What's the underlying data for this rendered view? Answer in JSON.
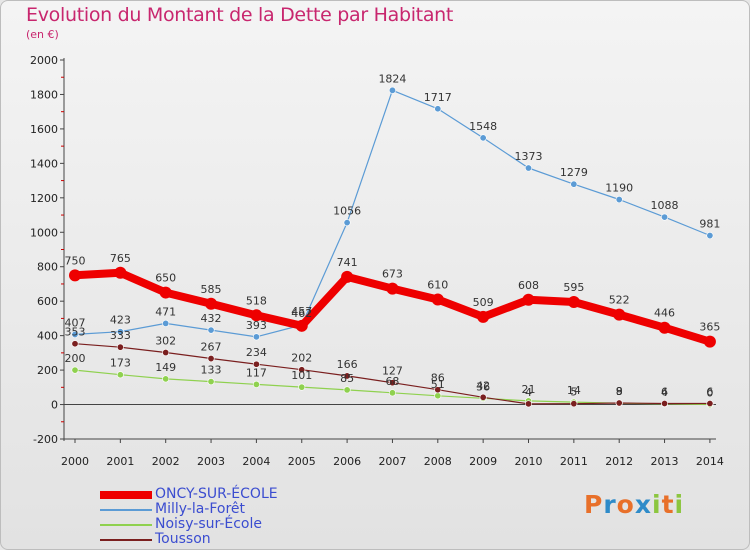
{
  "chart_data": {
    "type": "line",
    "title": "Evolution du Montant de la Dette par Habitant",
    "subtitle": "(en €)",
    "x": [
      "2000",
      "2001",
      "2002",
      "2003",
      "2004",
      "2005",
      "2006",
      "2007",
      "2008",
      "2009",
      "2010",
      "2011",
      "2012",
      "2013",
      "2014"
    ],
    "ylim": [
      -200,
      2000
    ],
    "yticks": [
      -200,
      0,
      200,
      400,
      600,
      800,
      1000,
      1200,
      1400,
      1600,
      1800,
      2000
    ],
    "grid": false,
    "legend_position": "bottom-left",
    "series": [
      {
        "name": "ONCY-SUR-ÉCOLE",
        "color": "#ee0000",
        "width": 8,
        "values": [
          750,
          765,
          650,
          585,
          518,
          457,
          741,
          673,
          610,
          509,
          608,
          595,
          522,
          446,
          365
        ]
      },
      {
        "name": "Milly-la-Forêt",
        "color": "#5b9bd5",
        "width": 1.2,
        "values": [
          407,
          423,
          471,
          432,
          393,
          462,
          1056,
          1824,
          1717,
          1548,
          1373,
          1279,
          1190,
          1088,
          981
        ]
      },
      {
        "name": "Noisy-sur-École",
        "color": "#8fd14f",
        "width": 1.2,
        "values": [
          200,
          173,
          149,
          133,
          117,
          101,
          85,
          68,
          51,
          36,
          21,
          14,
          8,
          4,
          0
        ]
      },
      {
        "name": "Tousson",
        "color": "#7a1f1f",
        "width": 1.2,
        "values": [
          353,
          333,
          302,
          267,
          234,
          202,
          166,
          127,
          86,
          42,
          4,
          5,
          9,
          6,
          6
        ]
      }
    ]
  },
  "logo": {
    "letters": [
      "P",
      "r",
      "o",
      "x",
      "i",
      "t",
      "i"
    ],
    "colors": [
      "#e8702a",
      "#2e8bc9",
      "#e8702a",
      "#2e8bc9",
      "#8cc63f",
      "#e8702a",
      "#8cc63f"
    ]
  }
}
